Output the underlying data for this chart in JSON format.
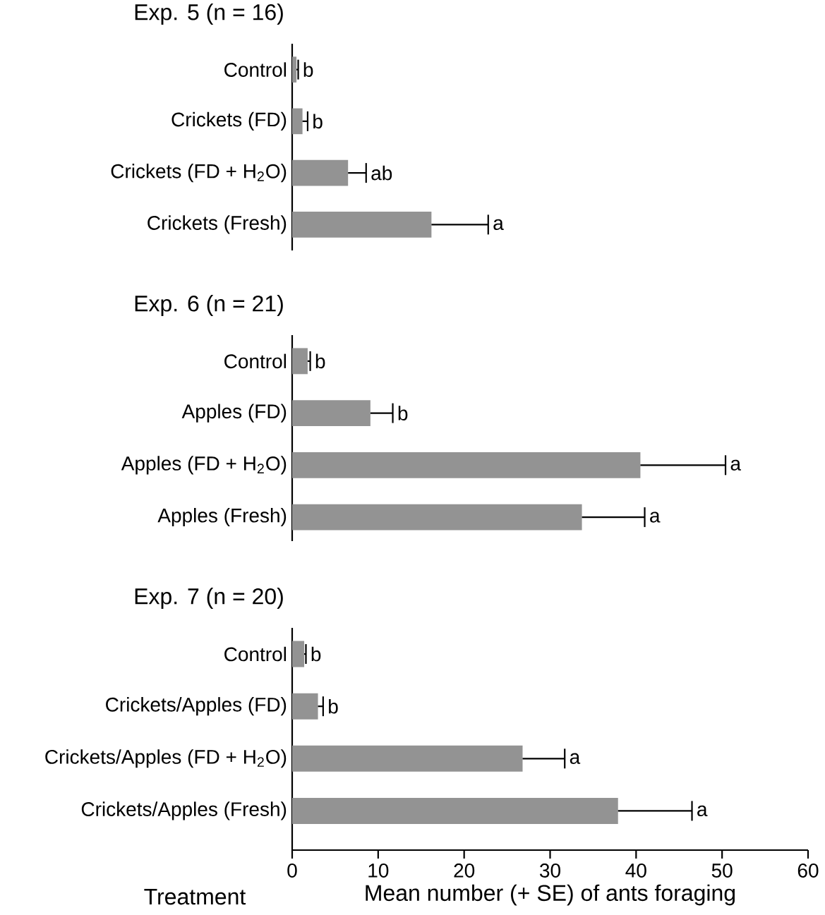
{
  "chart_data": [
    {
      "type": "bar",
      "orientation": "horizontal",
      "title": "Exp. 5 (n = 16)",
      "categories": [
        "Control",
        "Crickets (FD)",
        "Crickets (FD + H$_{2}$O)",
        "Crickets (Fresh)"
      ],
      "values": [
        0.5,
        1.2,
        6.5,
        16.2
      ],
      "errors": [
        [
          0.5,
          0.7
        ],
        [
          1.2,
          1.8
        ],
        [
          6.5,
          8.6
        ],
        [
          16.2,
          22.8
        ]
      ],
      "color": "#939393",
      "xlim": [
        0,
        60
      ],
      "tick_labels": "y",
      "annotations": [
        {
          "text": "b",
          "x": 0.7,
          "y": "Control"
        },
        {
          "text": "b",
          "x": 1.8,
          "y": "Crickets (FD)"
        },
        {
          "text": "ab",
          "x": 8.6,
          "y": "Crickets (FD + H$_{2}$O)"
        },
        {
          "text": "a",
          "x": 22.8,
          "y": "Crickets (Fresh)"
        }
      ]
    },
    {
      "type": "bar",
      "orientation": "horizontal",
      "title": "Exp. 6 (n = 21)",
      "categories": [
        "Control",
        "Apples (FD)",
        "Apples (FD + H$_{2}$O)",
        "Apples (Fresh)"
      ],
      "values": [
        1.8,
        9.1,
        40.5,
        33.7
      ],
      "errors": [
        [
          1.8,
          2.1
        ],
        [
          9.1,
          11.7
        ],
        [
          40.5,
          50.4
        ],
        [
          33.7,
          41.0
        ]
      ],
      "color": "#939393",
      "xlim": [
        0,
        60
      ],
      "tick_labels": "y",
      "annotations": [
        {
          "text": "b",
          "x": 2.1,
          "y": "Control"
        },
        {
          "text": "b",
          "x": 11.7,
          "y": "Apples (FD)"
        },
        {
          "text": "a",
          "x": 50.4,
          "y": "Apples (FD + H$_{2}$O)"
        },
        {
          "text": "a",
          "x": 41.0,
          "y": "Apples (Fresh)"
        }
      ]
    },
    {
      "type": "bar",
      "orientation": "horizontal",
      "title": "Exp. 7 (n = 20)",
      "categories": [
        "Control",
        "Crickets/Apples (FD)",
        "Crickets/Apples (FD + H$_{2}$O)",
        "Crickets/Apples (Fresh)"
      ],
      "values": [
        1.4,
        3.0,
        26.8,
        37.9
      ],
      "errors": [
        [
          1.4,
          1.6
        ],
        [
          3.0,
          3.6
        ],
        [
          26.8,
          31.7
        ],
        [
          37.9,
          46.5
        ]
      ],
      "color": "#939393",
      "xlim": [
        0,
        60
      ],
      "xticks": [
        0,
        10,
        20,
        30,
        40,
        50,
        60
      ],
      "xlabel": "Mean number (+ SE) of ants foraging",
      "ylabel": "Treatment",
      "annotations": [
        {
          "text": "b",
          "x": 1.6,
          "y": "Control"
        },
        {
          "text": "b",
          "x": 3.6,
          "y": "Crickets/Apples (FD)"
        },
        {
          "text": "a",
          "x": 31.7,
          "y": "Crickets/Apples (FD + H$_{2}$O)"
        },
        {
          "text": "a",
          "x": 46.5,
          "y": "Crickets/Apples (Fresh)"
        }
      ]
    }
  ]
}
